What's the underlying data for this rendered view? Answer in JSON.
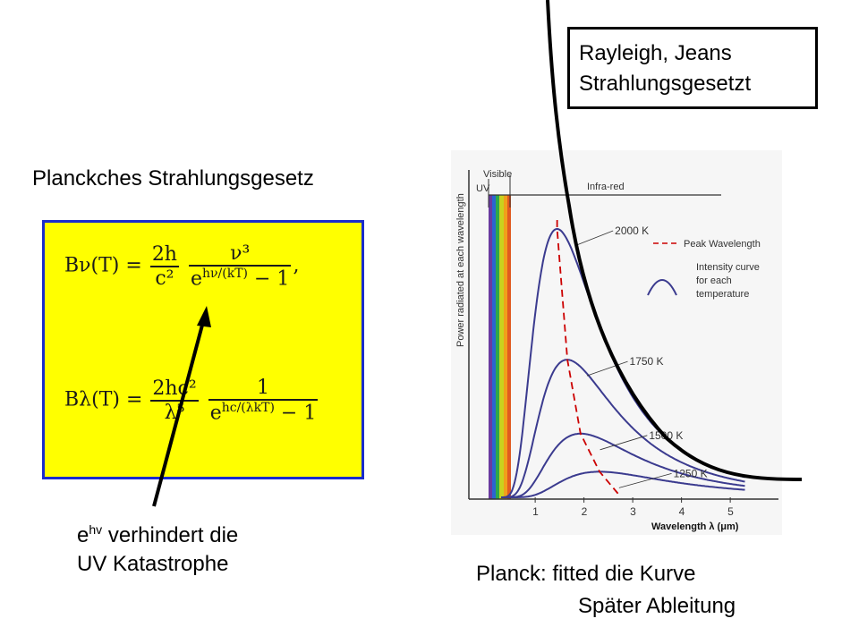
{
  "left_panel": {
    "title": "Planckches Strahlungsgesetz",
    "formula_bnu": {
      "lhs": "Bν(T) =",
      "frac1_num": "2h",
      "frac1_den": "c²",
      "frac2_num": "ν³",
      "frac2_den_exp": "hν/(kT)",
      "frac2_den_tail": " − 1"
    },
    "formula_blambda": {
      "lhs": "Bλ(T) =",
      "frac1_num": "2hc²",
      "frac1_den": "λ⁵",
      "frac2_num": "1",
      "frac2_den_exp": "hc/(λkT)",
      "frac2_den_tail": " − 1"
    },
    "note_line1_prefix": "e",
    "note_line1_sup": "hv",
    "note_line1_rest": " verhindert die",
    "note_line2": "UV Katastrophe",
    "box_color": "#ffff00",
    "box_border": "#1a2ccc"
  },
  "rayleigh_box": {
    "line1": "Rayleigh, Jeans",
    "line2": "Strahlungsgesetzt"
  },
  "caption": {
    "line1": "Planck: fitted die Kurve",
    "line2": "Später Ableitung"
  },
  "chart_data": {
    "type": "line",
    "ylabel": "Power radiated at each wavelength",
    "xlabel": "Wavelength λ (μm)",
    "x_ticks": [
      "1",
      "2",
      "3",
      "4",
      "5"
    ],
    "band_labels": {
      "visible": "Visible",
      "uv": "UV",
      "infrared": "Infra-red"
    },
    "legend": {
      "peak": "Peak Wavelength",
      "curve_line1": "Intensity curve",
      "curve_line2": "for each",
      "curve_line3": "temperature"
    },
    "series": [
      {
        "name": "2000 K",
        "temperature_K": 2000,
        "peak_um": 1.45
      },
      {
        "name": "1750 K",
        "temperature_K": 1750,
        "peak_um": 1.66
      },
      {
        "name": "1500 K",
        "temperature_K": 1500,
        "peak_um": 1.93
      },
      {
        "name": "1250 K",
        "temperature_K": 1250,
        "peak_um": 2.32
      }
    ],
    "xlim": [
      0,
      5.5
    ],
    "colors": {
      "curve": "#3b3b8f",
      "peak": "#cc0000",
      "rayleigh": "#000000"
    }
  }
}
